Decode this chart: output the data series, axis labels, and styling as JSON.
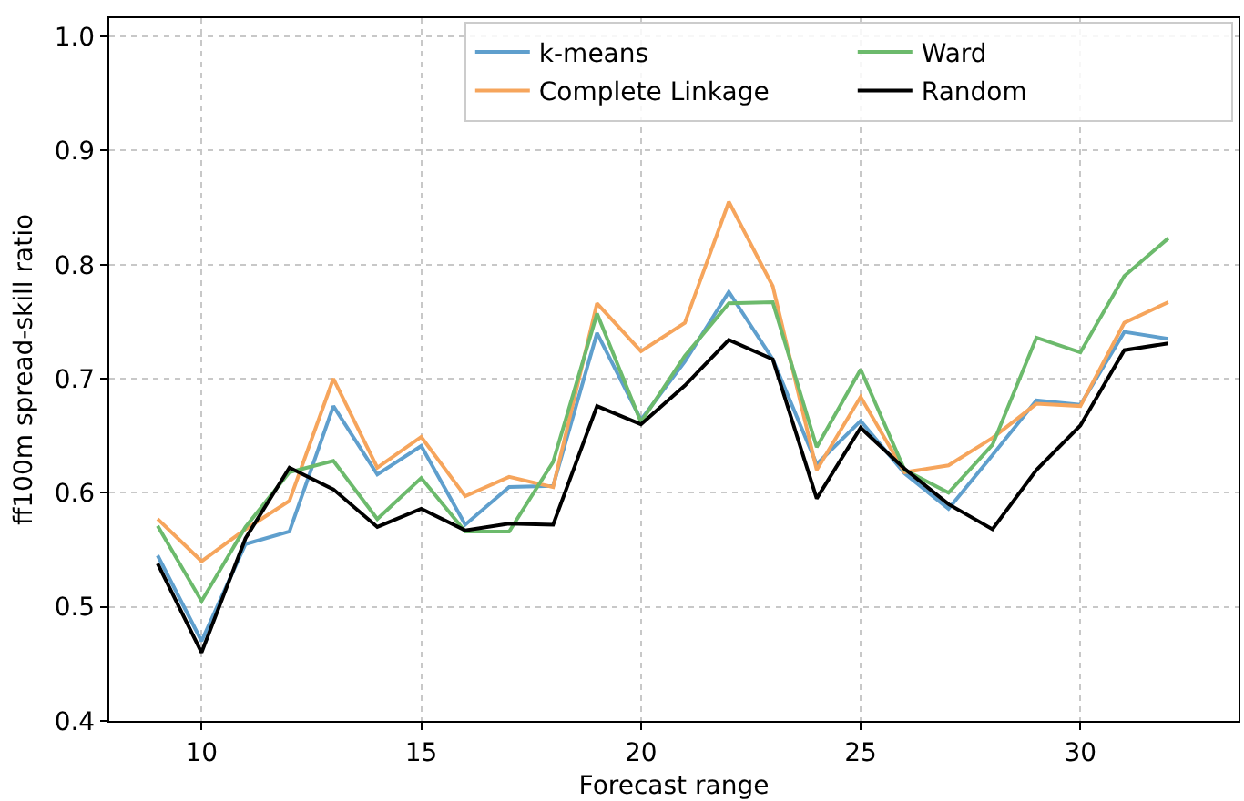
{
  "chart_data": {
    "type": "line",
    "xlabel": "Forecast range",
    "ylabel": "ff100m spread-skill ratio",
    "x": [
      9,
      10,
      11,
      12,
      13,
      14,
      15,
      16,
      17,
      18,
      19,
      20,
      21,
      22,
      23,
      24,
      25,
      26,
      27,
      28,
      29,
      30,
      31,
      32
    ],
    "series": [
      {
        "name": "k-means",
        "color": "#5f9fcd",
        "values": [
          0.545,
          0.47,
          0.555,
          0.566,
          0.676,
          0.616,
          0.641,
          0.572,
          0.605,
          0.606,
          0.74,
          0.664,
          0.715,
          0.776,
          0.717,
          0.625,
          0.663,
          0.617,
          0.586,
          0.633,
          0.681,
          0.677,
          0.741,
          0.735
        ]
      },
      {
        "name": "Complete Linkage",
        "color": "#f6a55c",
        "values": [
          0.577,
          0.54,
          0.568,
          0.593,
          0.7,
          0.622,
          0.649,
          0.597,
          0.614,
          0.605,
          0.766,
          0.724,
          0.749,
          0.855,
          0.781,
          0.62,
          0.684,
          0.618,
          0.624,
          0.648,
          0.678,
          0.676,
          0.749,
          0.767
        ]
      },
      {
        "name": "Ward",
        "color": "#6cba6c",
        "values": [
          0.571,
          0.505,
          0.57,
          0.618,
          0.628,
          0.577,
          0.613,
          0.566,
          0.566,
          0.627,
          0.757,
          0.662,
          0.72,
          0.766,
          0.767,
          0.64,
          0.708,
          0.62,
          0.6,
          0.642,
          0.736,
          0.723,
          0.79,
          0.823
        ]
      },
      {
        "name": "Random",
        "color": "#000000",
        "values": [
          0.538,
          0.46,
          0.56,
          0.622,
          0.603,
          0.57,
          0.586,
          0.567,
          0.573,
          0.572,
          0.676,
          0.66,
          0.694,
          0.734,
          0.717,
          0.595,
          0.657,
          0.621,
          0.59,
          0.568,
          0.62,
          0.659,
          0.725,
          0.731
        ]
      }
    ],
    "xlim": [
      7.9,
      33.6
    ],
    "xticks": [
      10,
      15,
      20,
      25,
      30
    ],
    "ylim": [
      0.4,
      1.016
    ],
    "yticks": [
      0.4,
      0.5,
      0.6,
      0.7,
      0.8,
      0.9,
      {
        "value": 1,
        "label": "1.0"
      }
    ],
    "grid": true,
    "legend": "top right",
    "marker": "none",
    "line_style": "solid"
  }
}
